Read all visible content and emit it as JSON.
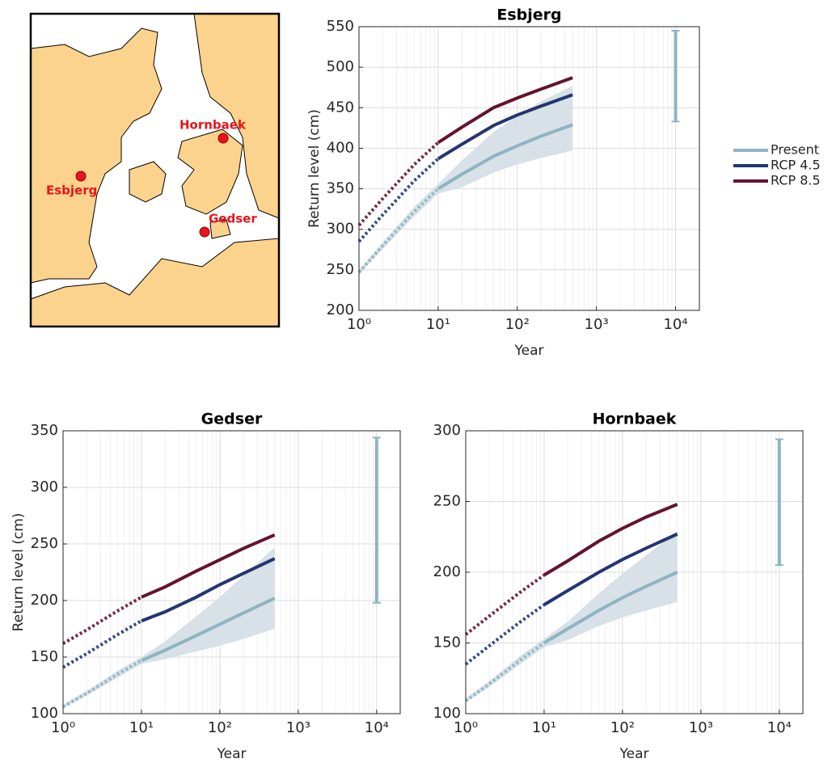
{
  "map": {
    "stations": [
      "Esbjerg",
      "Hornbaek",
      "Gedser"
    ]
  },
  "chart_data": [
    {
      "type": "line",
      "title": "Esbjerg",
      "xlabel": "Year",
      "ylabel": "Return level (cm)",
      "log_x": true,
      "grid": true,
      "legend": "outside-right",
      "dotted_xlim": [
        1,
        10
      ],
      "xlim": [
        1,
        20000
      ],
      "ylim": [
        200,
        550
      ],
      "xticks": [
        {
          "value": 1,
          "label": "10⁰"
        },
        {
          "value": 10,
          "label": "10¹"
        },
        {
          "value": 100,
          "label": "10²"
        },
        {
          "value": 1000,
          "label": "10³"
        },
        {
          "value": 10000,
          "label": "10⁴"
        }
      ],
      "yticks": [
        200,
        250,
        300,
        350,
        400,
        450,
        500,
        550
      ],
      "x": [
        1,
        2,
        5,
        10,
        20,
        50,
        100,
        200,
        500
      ],
      "band": {
        "color": "#d3dee4",
        "lower": [
          244,
          276,
          316,
          344,
          352,
          370,
          380,
          388,
          397
        ],
        "upper": [
          250,
          284,
          328,
          356,
          385,
          420,
          440,
          458,
          477
        ]
      },
      "series": [
        {
          "name": "Present",
          "color": "#8eb4c3",
          "values": [
            247,
            280,
            322,
            350,
            368,
            390,
            403,
            415,
            429
          ]
        },
        {
          "name": "RCP 4.5",
          "color": "#243573",
          "values": [
            285,
            318,
            360,
            387,
            405,
            428,
            441,
            452,
            466
          ]
        },
        {
          "name": "RCP 8.5",
          "color": "#63142d",
          "values": [
            305,
            338,
            380,
            407,
            426,
            450,
            462,
            473,
            487
          ]
        }
      ],
      "error_bar": {
        "x": 10000,
        "low": 433,
        "high": 545,
        "color": "#8eb4c3"
      }
    },
    {
      "type": "line",
      "title": "Gedser",
      "xlabel": "Year",
      "ylabel": "Return level (cm)",
      "log_x": true,
      "grid": true,
      "legend": "none",
      "dotted_xlim": [
        1,
        10
      ],
      "xlim": [
        1,
        20000
      ],
      "ylim": [
        100,
        350
      ],
      "xticks": [
        {
          "value": 1,
          "label": "10⁰"
        },
        {
          "value": 10,
          "label": "10¹"
        },
        {
          "value": 100,
          "label": "10²"
        },
        {
          "value": 1000,
          "label": "10³"
        },
        {
          "value": 10000,
          "label": "10⁴"
        }
      ],
      "yticks": [
        100,
        150,
        200,
        250,
        300,
        350
      ],
      "x": [
        1,
        2,
        5,
        10,
        20,
        50,
        100,
        200,
        500
      ],
      "band": {
        "color": "#d3dee4",
        "lower": [
          105,
          116,
          132,
          144,
          148,
          155,
          160,
          166,
          175
        ],
        "upper": [
          108,
          120,
          138,
          150,
          164,
          186,
          203,
          222,
          247
        ]
      },
      "series": [
        {
          "name": "Present",
          "color": "#8eb4c3",
          "values": [
            106,
            118,
            135,
            147,
            156,
            169,
            179,
            189,
            202
          ]
        },
        {
          "name": "RCP 4.5",
          "color": "#243573",
          "values": [
            141,
            153,
            170,
            182,
            190,
            203,
            214,
            224,
            237
          ]
        },
        {
          "name": "RCP 8.5",
          "color": "#63142d",
          "values": [
            162,
            174,
            191,
            203,
            212,
            226,
            236,
            246,
            258
          ]
        }
      ],
      "error_bar": {
        "x": 10000,
        "low": 198,
        "high": 344,
        "color": "#8eb4c3"
      }
    },
    {
      "type": "line",
      "title": "Hornbaek",
      "xlabel": "Year",
      "log_x": true,
      "grid": true,
      "legend": "none",
      "dotted_xlim": [
        1,
        10
      ],
      "xlim": [
        1,
        20000
      ],
      "ylim": [
        100,
        300
      ],
      "xticks": [
        {
          "value": 1,
          "label": "10⁰"
        },
        {
          "value": 10,
          "label": "10¹"
        },
        {
          "value": 100,
          "label": "10²"
        },
        {
          "value": 1000,
          "label": "10³"
        },
        {
          "value": 10000,
          "label": "10⁴"
        }
      ],
      "yticks": [
        100,
        150,
        200,
        250,
        300
      ],
      "x": [
        1,
        2,
        5,
        10,
        20,
        50,
        100,
        200,
        500
      ],
      "band": {
        "color": "#d3dee4",
        "lower": [
          108,
          119,
          135,
          147,
          152,
          162,
          168,
          173,
          179
        ],
        "upper": [
          111,
          123,
          141,
          153,
          165,
          185,
          199,
          212,
          229
        ]
      },
      "series": [
        {
          "name": "Present",
          "color": "#8eb4c3",
          "values": [
            109,
            121,
            138,
            150,
            160,
            173,
            182,
            190,
            200
          ]
        },
        {
          "name": "RCP 4.5",
          "color": "#243573",
          "values": [
            135,
            148,
            165,
            177,
            187,
            200,
            209,
            217,
            227
          ]
        },
        {
          "name": "RCP 8.5",
          "color": "#63142d",
          "values": [
            156,
            169,
            186,
            198,
            208,
            222,
            231,
            239,
            248
          ]
        }
      ],
      "error_bar": {
        "x": 10000,
        "low": 205,
        "high": 294,
        "color": "#8eb4c3"
      }
    }
  ]
}
